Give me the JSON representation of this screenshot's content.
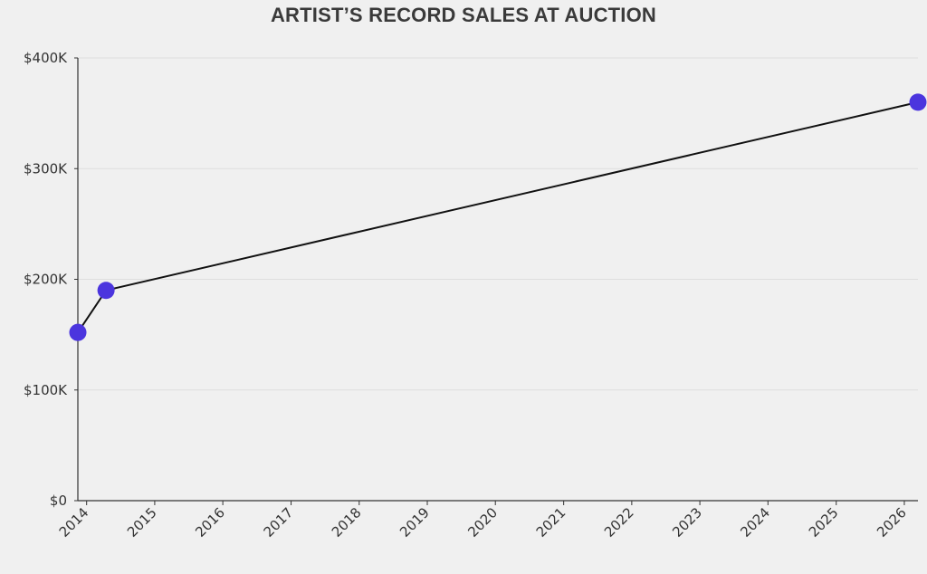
{
  "chart_data": {
    "type": "line",
    "title": "ARTIST’S RECORD SALES AT AUCTION",
    "xlabel": "",
    "ylabel": "",
    "x_ticks": [
      "2014",
      "2015",
      "2016",
      "2017",
      "2018",
      "2019",
      "2020",
      "2021",
      "2022",
      "2023",
      "2024",
      "2025",
      "2026"
    ],
    "y_ticks": [
      "$0",
      "$100K",
      "$200K",
      "$300K",
      "$400K"
    ],
    "xlim": [
      "2013-11-15",
      "2026-03-15"
    ],
    "ylim": [
      0,
      400000
    ],
    "grid": "horizontal",
    "series": [
      {
        "points": [
          {
            "x": "2013-11-15",
            "y": 152000
          },
          {
            "x": "2014-04-15",
            "y": 190000
          },
          {
            "x": "2026-03-15",
            "y": 360000
          }
        ]
      }
    ],
    "colors": {
      "line": "#111111",
      "marker": "#4b35de",
      "grid": "#dedede",
      "axis": "#333333"
    }
  }
}
